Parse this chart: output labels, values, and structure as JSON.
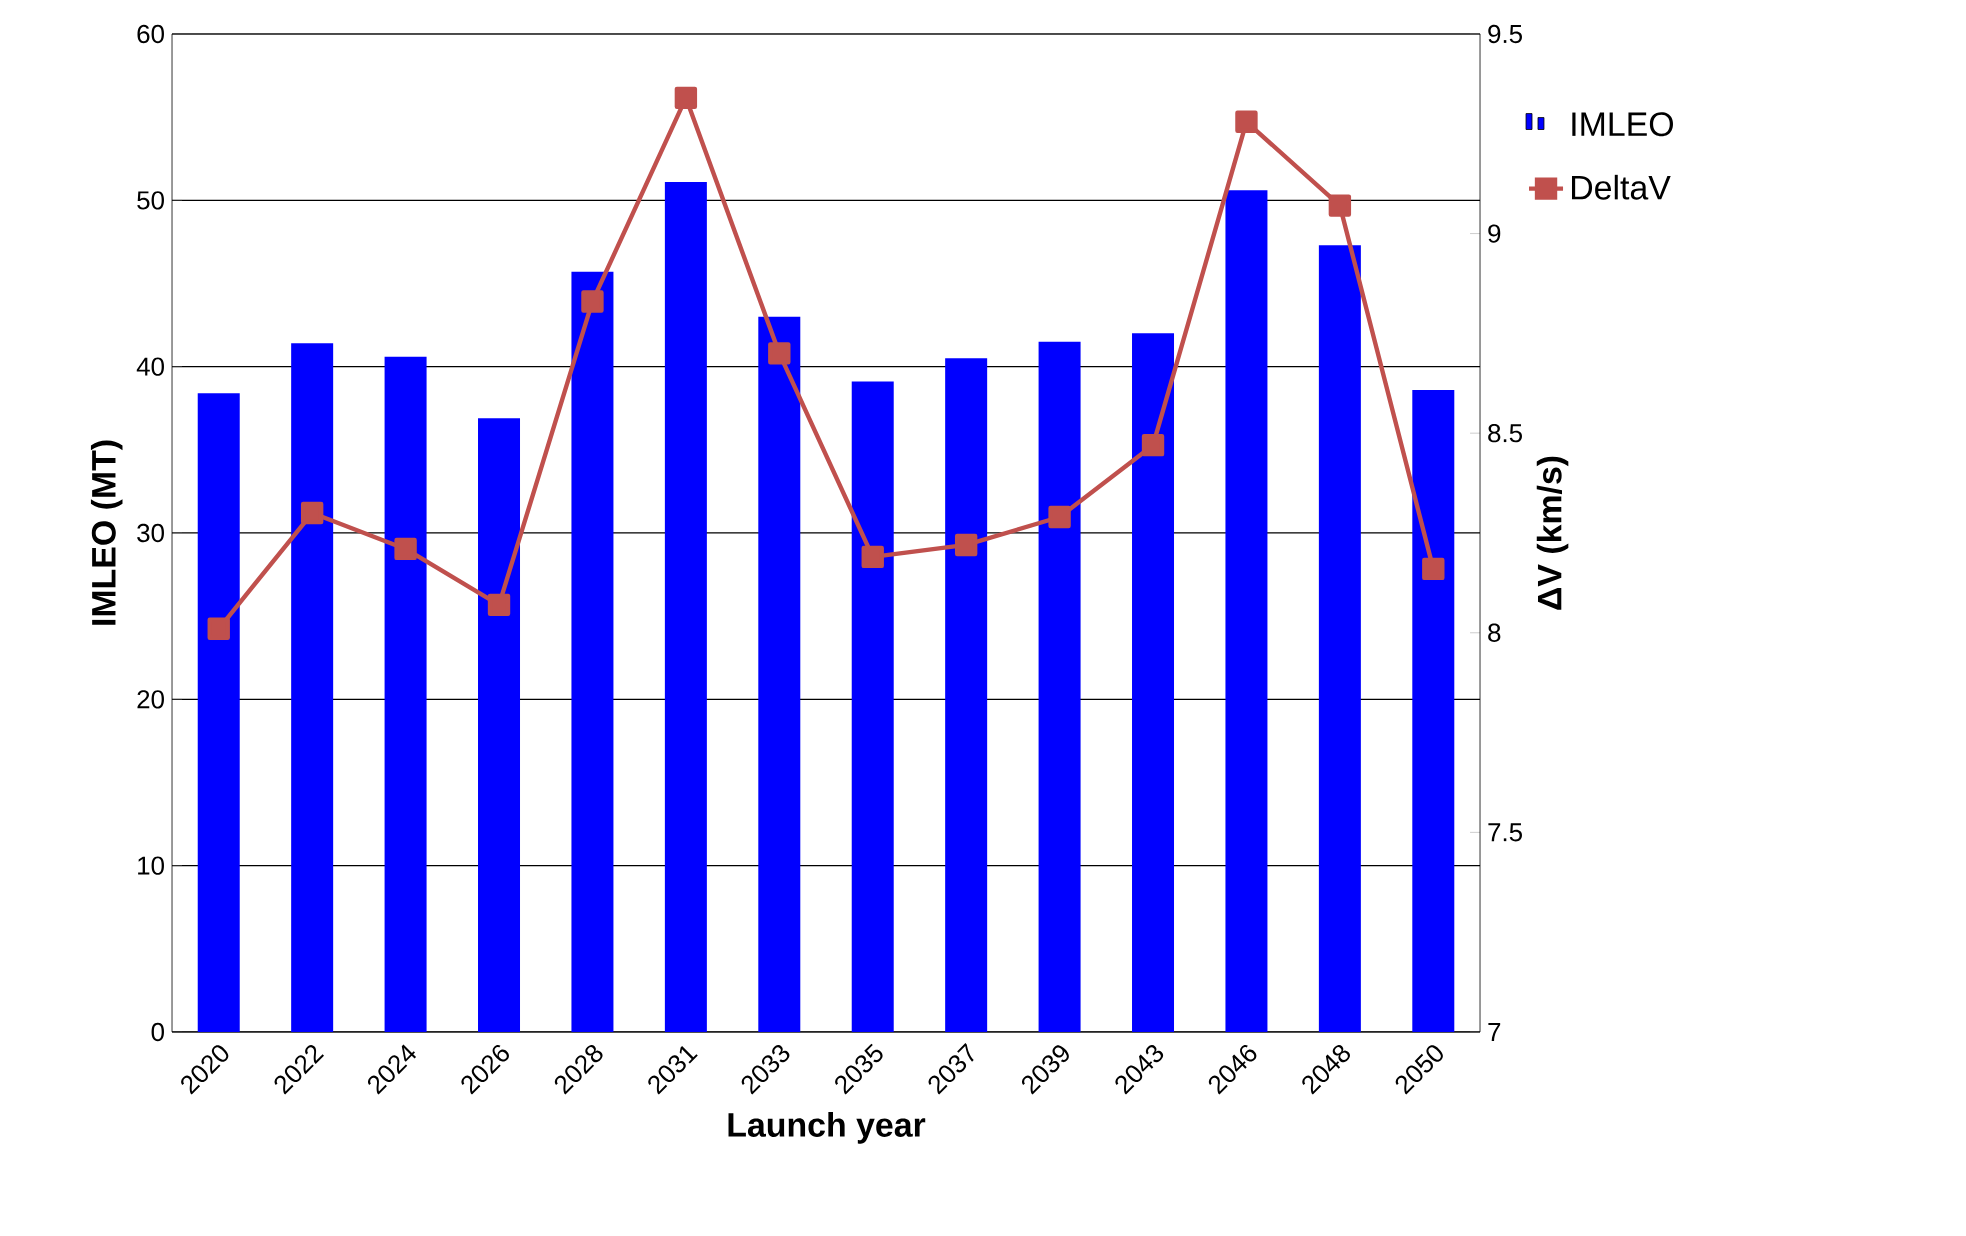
{
  "chart_data": {
    "type": "bar",
    "xlabel": "Launch year",
    "ylabel": "IMLEO (MT)",
    "y2label": "ΔV (km/s)",
    "categories": [
      "2020",
      "2022",
      "2024",
      "2026",
      "2028",
      "2031",
      "2033",
      "2035",
      "2037",
      "2039",
      "2043",
      "2046",
      "2048",
      "2050"
    ],
    "series": [
      {
        "name": "IMLEO",
        "color": "#0000ff",
        "values": [
          38.4,
          41.4,
          40.6,
          36.9,
          45.7,
          51.1,
          43.0,
          39.1,
          40.5,
          41.5,
          42.0,
          50.6,
          47.3,
          38.6
        ]
      },
      {
        "name": "DeltaV",
        "type": "line",
        "axis": "y2",
        "color": "#c0504d",
        "marker": "square",
        "values": [
          8.01,
          8.3,
          8.21,
          8.07,
          8.83,
          9.34,
          8.7,
          8.19,
          8.22,
          8.29,
          8.47,
          9.28,
          9.07,
          8.16
        ]
      }
    ],
    "ylim": [
      0,
      60
    ],
    "yticks": [
      0,
      10,
      20,
      30,
      40,
      50,
      60
    ],
    "y2lim": [
      7,
      9.5
    ],
    "y2ticks": [
      7,
      7.5,
      8,
      8.5,
      9,
      9.5
    ],
    "grid": "y",
    "legend": "right"
  }
}
